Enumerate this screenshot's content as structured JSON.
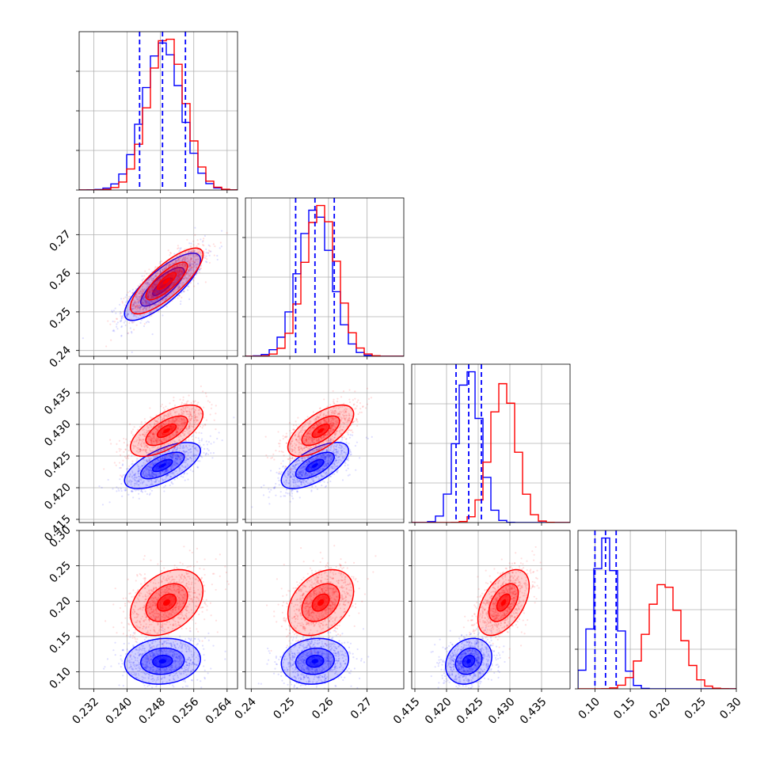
{
  "chart_data": {
    "type": "corner",
    "figure_title": "",
    "parameters": [
      {
        "index": 0,
        "label": "",
        "range": [
          0.2285,
          0.2665
        ],
        "ticks": [
          "0.232",
          "0.240",
          "0.248",
          "0.256",
          "0.264"
        ]
      },
      {
        "index": 1,
        "label": "",
        "range": [
          0.2385,
          0.2795
        ],
        "ticks": [
          "0.24",
          "0.25",
          "0.26",
          "0.27"
        ]
      },
      {
        "index": 2,
        "label": "",
        "range": [
          0.4145,
          0.4395
        ],
        "ticks": [
          "0.415",
          "0.420",
          "0.425",
          "0.430",
          "0.435"
        ]
      },
      {
        "index": 3,
        "label": "",
        "range": [
          0.076,
          0.3
        ],
        "ticks": [
          "0.10",
          "0.15",
          "0.20",
          "0.25",
          "0.30"
        ]
      }
    ],
    "series": [
      {
        "name": "",
        "color": "#0000ff",
        "mean": [
          0.2485,
          0.2565,
          0.4235,
          0.115
        ],
        "sd": [
          0.0045,
          0.0043,
          0.0018,
          0.016
        ],
        "corr": [
          [
            1,
            0.8,
            0.65,
            0.1
          ],
          [
            0.8,
            1,
            0.65,
            0.1
          ],
          [
            0.65,
            0.65,
            1,
            0.2
          ],
          [
            0.1,
            0.1,
            0.2,
            1
          ]
        ]
      },
      {
        "name": "",
        "color": "#ff0000",
        "mean": [
          0.2495,
          0.258,
          0.429,
          0.198
        ],
        "sd": [
          0.0043,
          0.0042,
          0.002,
          0.023
        ],
        "corr": [
          [
            1,
            0.8,
            0.65,
            0.35
          ],
          [
            0.8,
            1,
            0.65,
            0.35
          ],
          [
            0.65,
            0.65,
            1,
            0.5
          ],
          [
            0.35,
            0.35,
            0.5,
            1
          ]
        ]
      }
    ],
    "quantiles": {
      "color": "#0000ff",
      "style": "dashed",
      "values": [
        [
          0.243,
          0.2485,
          0.254
        ],
        [
          0.2515,
          0.2565,
          0.2615
        ],
        [
          0.4215,
          0.4235,
          0.4255
        ],
        [
          0.1,
          0.115,
          0.13
        ]
      ]
    },
    "histogram_bins": 20,
    "contour_levels": [
      0.39,
      0.86,
      1.5
    ],
    "grid": true,
    "legend": "none"
  }
}
